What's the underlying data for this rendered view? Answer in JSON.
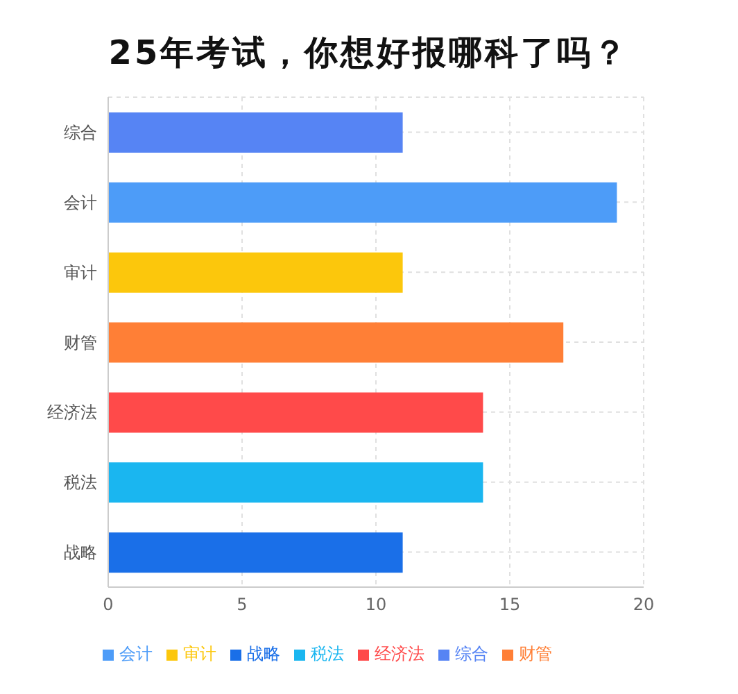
{
  "chart_data": {
    "type": "bar",
    "orientation": "horizontal",
    "stacked": true,
    "title": "25年考试，你想好报哪科了吗？",
    "categories": [
      "综合",
      "会计",
      "审计",
      "财管",
      "经济法",
      "税法",
      "战略"
    ],
    "series": [
      {
        "name": "战略",
        "color": "#1a6fe8",
        "values": [
          null,
          null,
          null,
          null,
          null,
          null,
          11
        ]
      },
      {
        "name": "税法",
        "color": "#1ab6f0",
        "values": [
          null,
          null,
          null,
          null,
          null,
          14,
          null
        ]
      },
      {
        "name": "经济法",
        "color": "#ff4a4a",
        "values": [
          null,
          null,
          null,
          null,
          14,
          null,
          null
        ]
      },
      {
        "name": "财管",
        "color": "#ff7f36",
        "values": [
          null,
          null,
          null,
          17,
          null,
          null,
          null
        ]
      },
      {
        "name": "审计",
        "color": "#fcc70c",
        "values": [
          null,
          null,
          11,
          null,
          null,
          null,
          null
        ]
      },
      {
        "name": "会计",
        "color": "#4d9cf8",
        "values": [
          null,
          19,
          null,
          null,
          null,
          null,
          null
        ]
      },
      {
        "name": "综合",
        "color": "#5684f4",
        "values": [
          11,
          null,
          null,
          null,
          null,
          null,
          null
        ]
      }
    ],
    "xlim": [
      0,
      20
    ],
    "xticks": [
      0,
      5,
      10,
      15,
      20
    ],
    "grid": true,
    "legend": "bottom"
  }
}
